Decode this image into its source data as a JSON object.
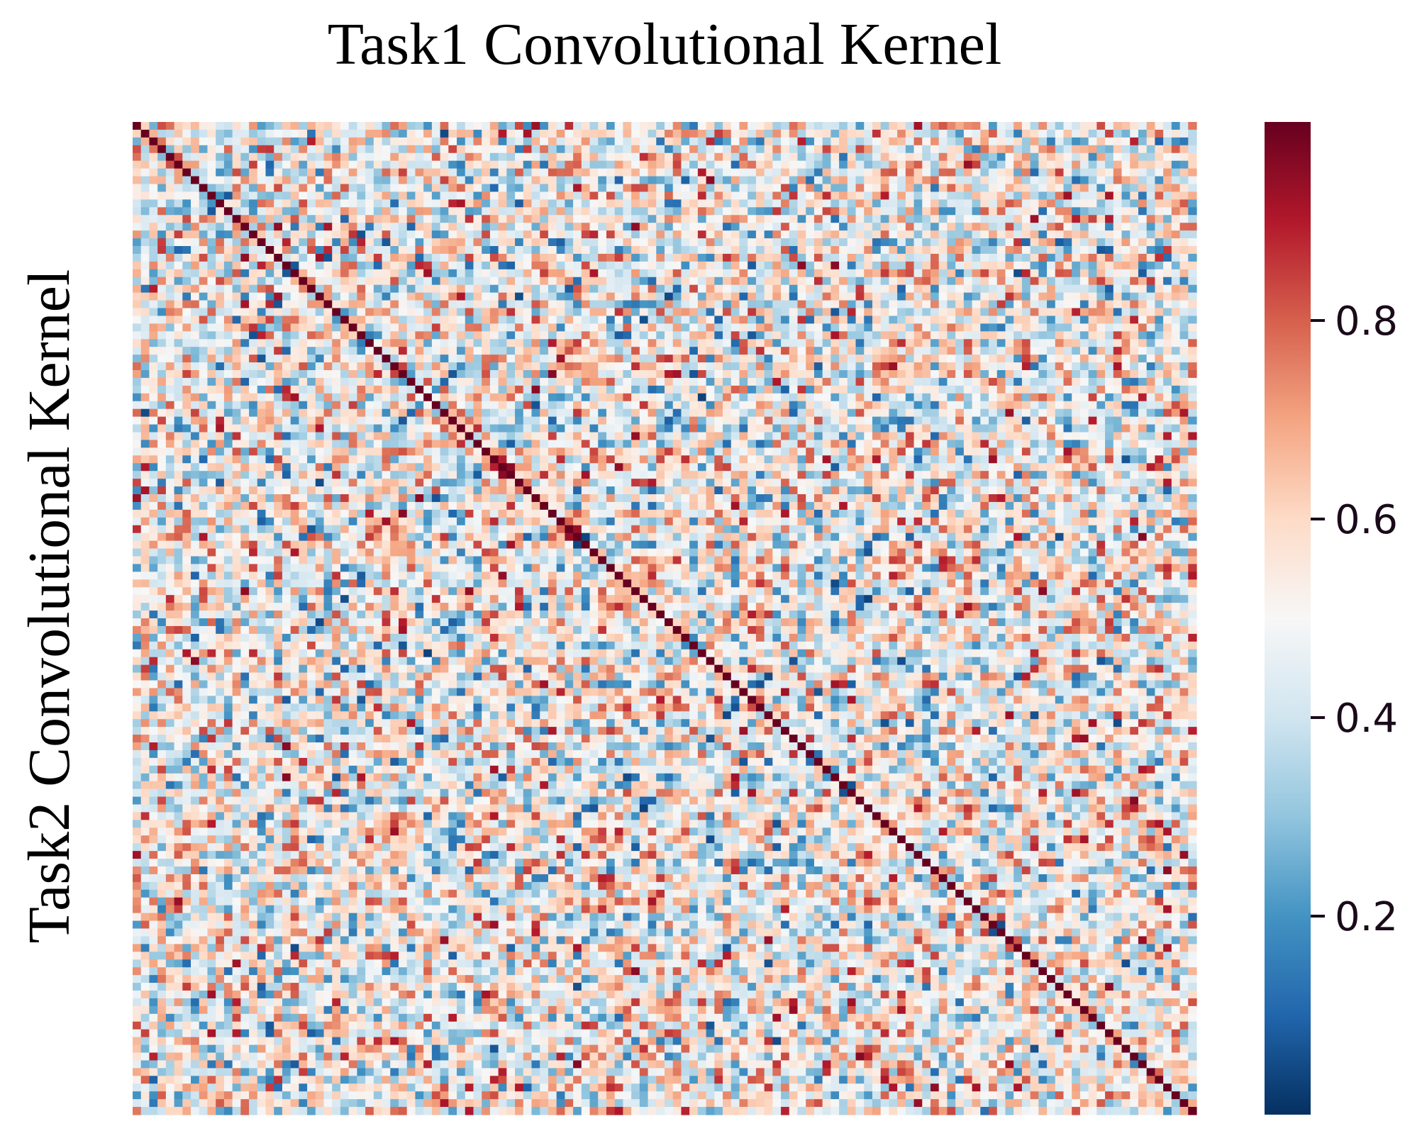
{
  "chart_data": {
    "type": "heatmap",
    "title": "Task1 Convolutional Kernel",
    "xlabel": "",
    "ylabel": "Task2 Convolutional Kernel",
    "size": 128,
    "diagonal_value": 1.0,
    "value_range": [
      0.0,
      1.0
    ],
    "colormap": "RdBu_r",
    "colorbar": {
      "ticks": [
        0.2,
        0.4,
        0.6,
        0.8
      ],
      "tick_labels": [
        "0.2",
        "0.4",
        "0.6",
        "0.8"
      ],
      "range": [
        0.0,
        1.0
      ]
    },
    "x_tick_labels": [],
    "y_tick_labels": []
  }
}
